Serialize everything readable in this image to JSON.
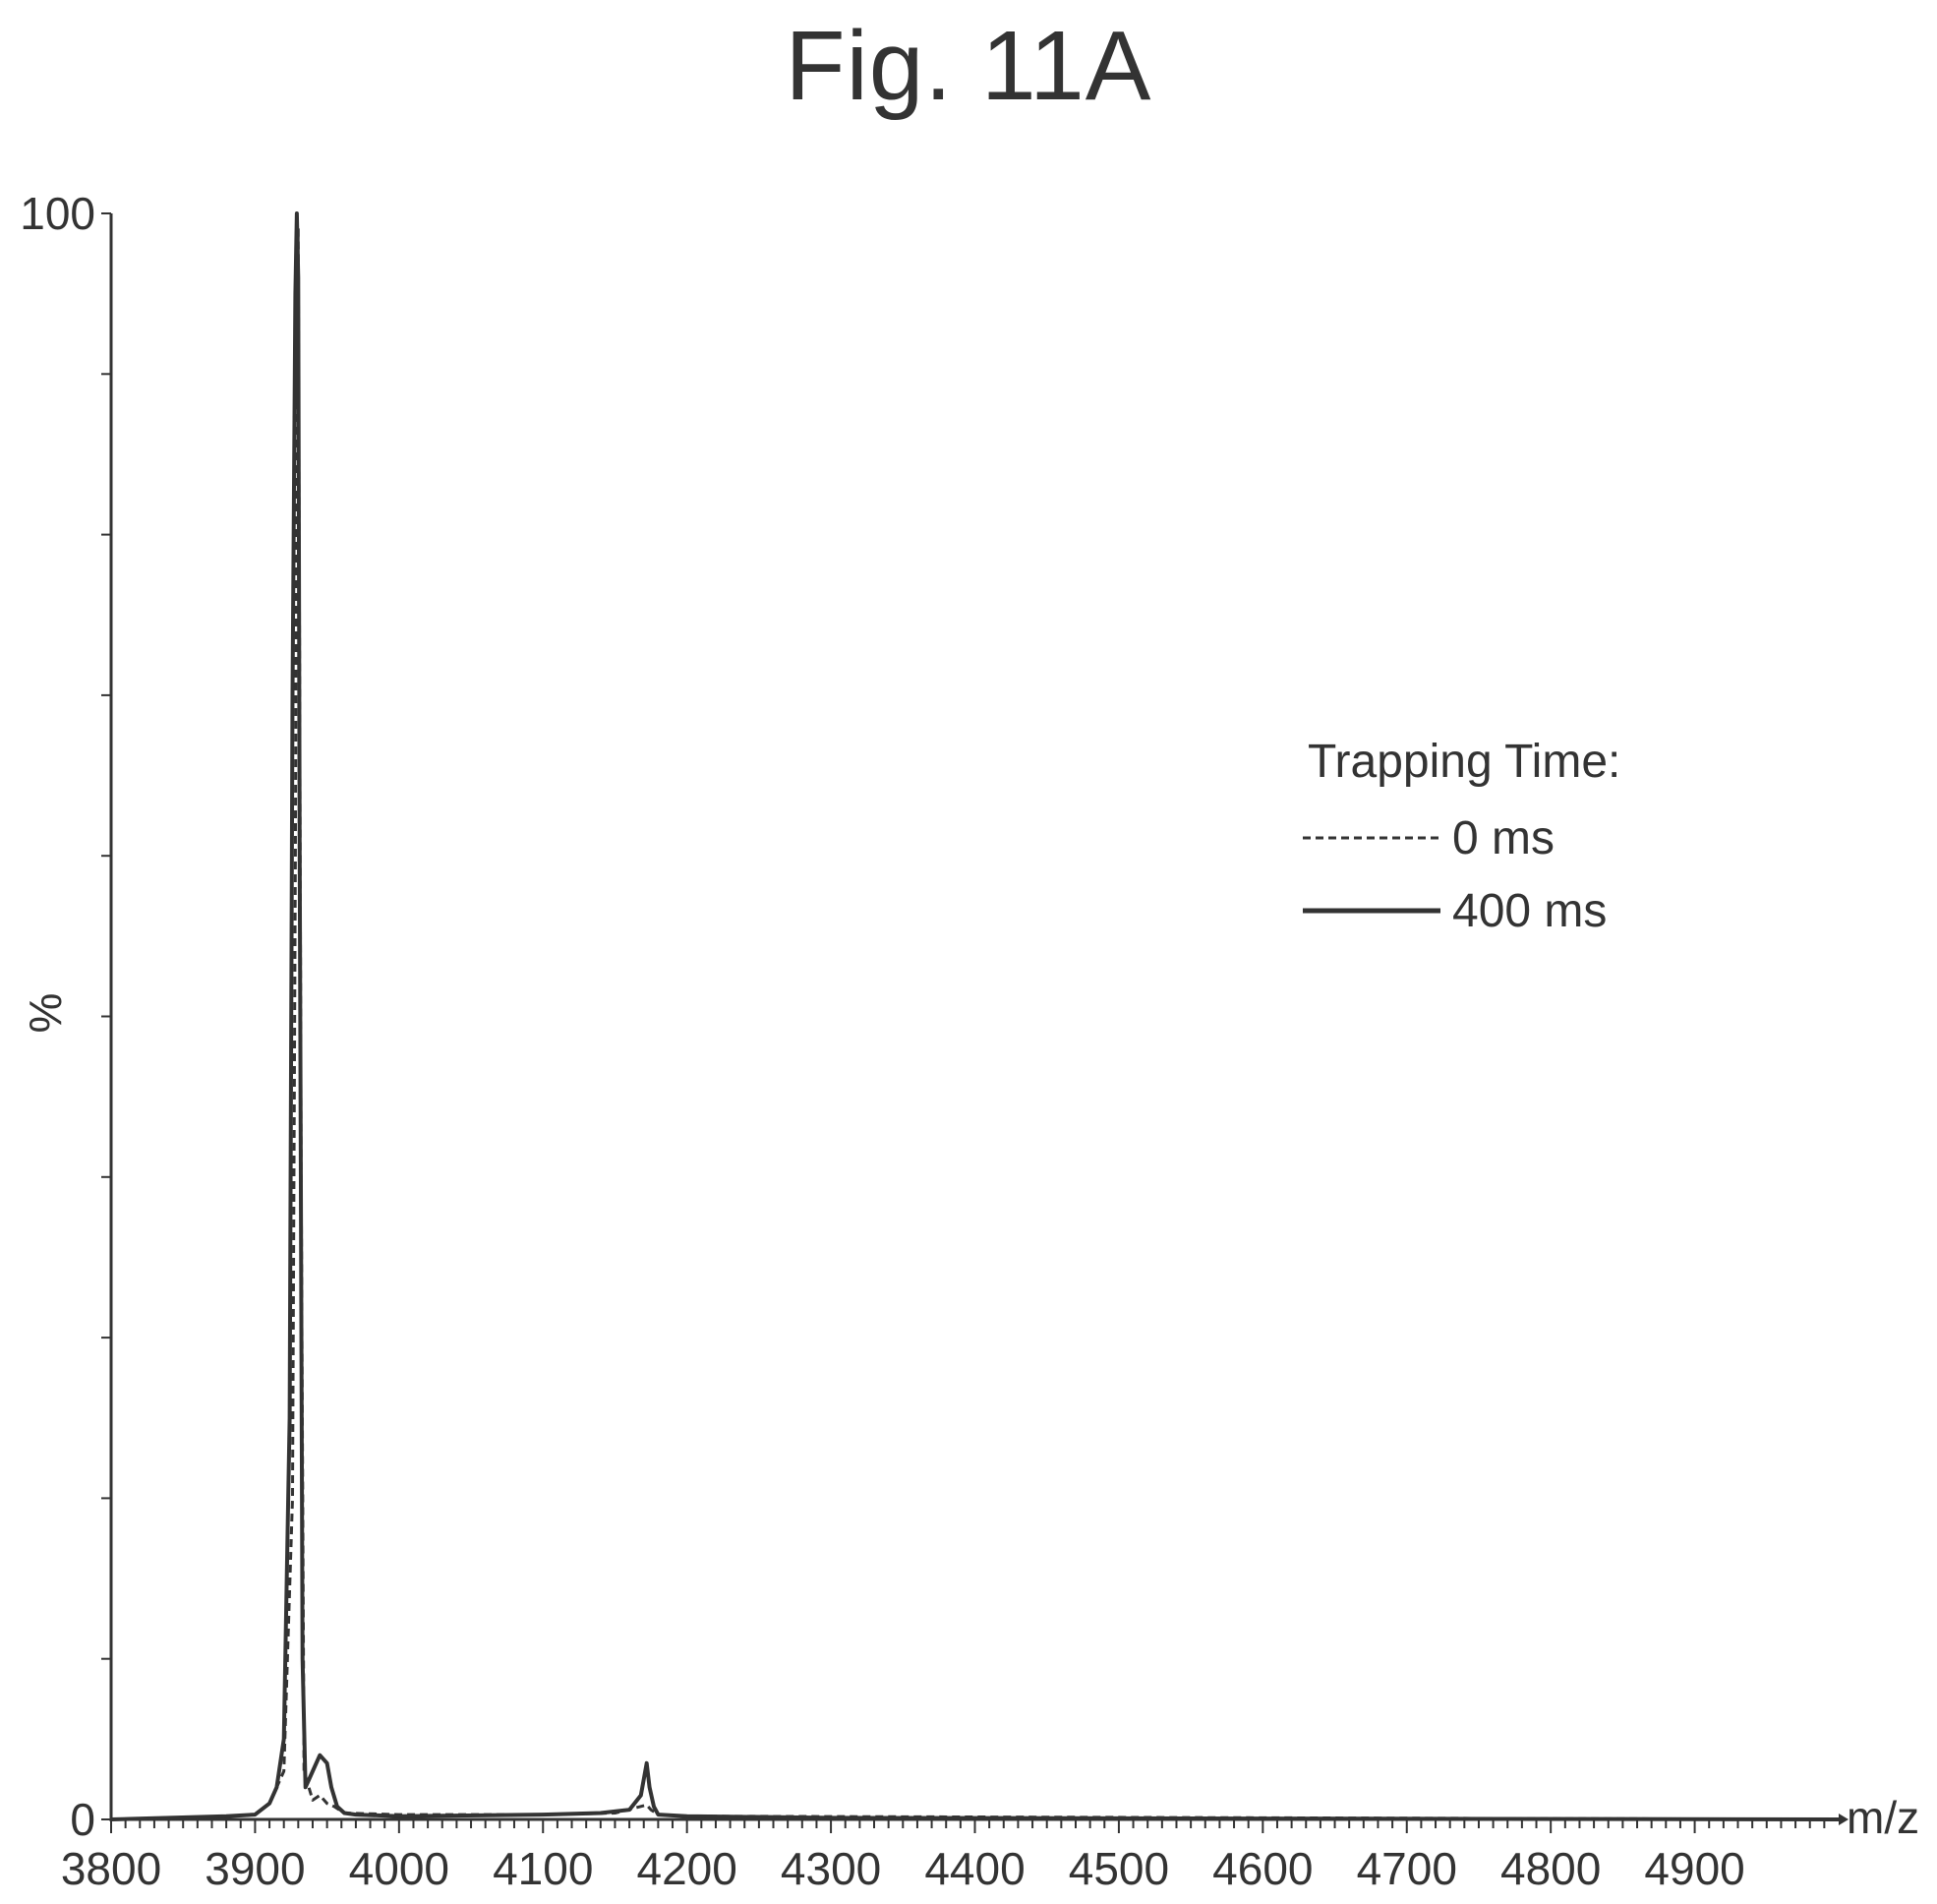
{
  "figure": {
    "title": "Fig. 11A"
  },
  "chart_data": {
    "type": "line",
    "title": "Fig. 11A",
    "xlabel": "m/z",
    "ylabel": "%",
    "xlim": [
      3800,
      5000
    ],
    "ylim": [
      0,
      100
    ],
    "x_ticks": [
      3800,
      3900,
      4000,
      4100,
      4200,
      4300,
      4400,
      4500,
      4600,
      4700,
      4800,
      4900
    ],
    "y_ticks": [
      0,
      100
    ],
    "grid": false,
    "legend": {
      "title": "Trapping Time:",
      "placement": "right"
    },
    "series": [
      {
        "name": "0 ms",
        "style": "dashed",
        "x": [
          3800,
          3880,
          3900,
          3910,
          3920,
          3926,
          3928,
          3929,
          3930,
          3932,
          3934,
          3940,
          3945,
          3950,
          3955,
          3962,
          4000,
          4100,
          4150,
          4172,
          4175,
          4180,
          4200,
          5000
        ],
        "y": [
          0,
          0.2,
          0.3,
          1,
          3,
          20,
          60,
          90,
          99,
          40,
          3,
          1.2,
          1.5,
          1,
          0.8,
          0.4,
          0.3,
          0.3,
          0.4,
          0.9,
          0.6,
          0.3,
          0.2,
          0
        ]
      },
      {
        "name": "400 ms",
        "style": "solid",
        "x": [
          3800,
          3880,
          3900,
          3910,
          3915,
          3920,
          3924,
          3926,
          3928,
          3929,
          3930,
          3931,
          3933,
          3935,
          3940,
          3945,
          3950,
          3953,
          3957,
          3962,
          3970,
          4000,
          4100,
          4140,
          4160,
          4168,
          4172,
          4174,
          4177,
          4180,
          4200,
          4300,
          5000
        ],
        "y": [
          0,
          0.2,
          0.3,
          1,
          2,
          5,
          25,
          70,
          95,
          100,
          96,
          60,
          10,
          2,
          3,
          4,
          3.5,
          2,
          0.8,
          0.4,
          0.3,
          0.2,
          0.3,
          0.4,
          0.6,
          1.5,
          3.5,
          2,
          0.8,
          0.3,
          0.2,
          0.1,
          0
        ]
      }
    ]
  }
}
